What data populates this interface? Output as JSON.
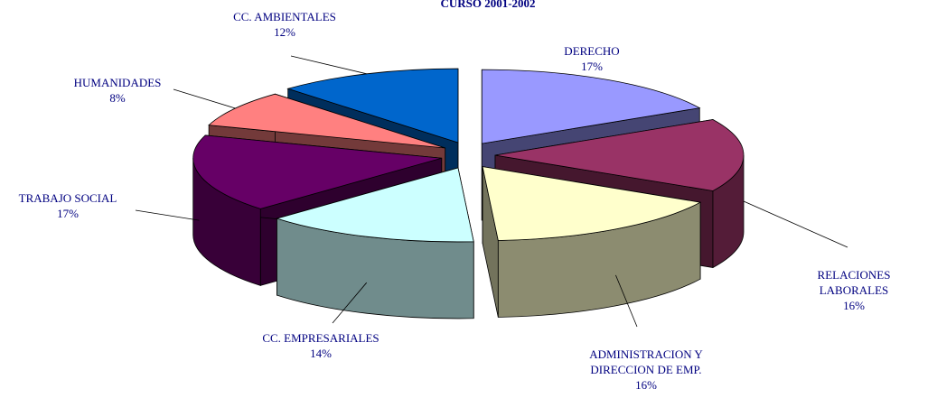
{
  "chart_data": {
    "type": "pie",
    "title": "CURSO 2001-2002",
    "categories": [
      "DERECHO",
      "RELACIONES LABORALES",
      "ADMINISTRACION Y\nDIRECCION DE EMP.",
      "CC. EMPRESARIALES",
      "TRABAJO SOCIAL",
      "HUMANIDADES",
      "CC. AMBIENTALES"
    ],
    "values": [
      17,
      16,
      16,
      14,
      17,
      8,
      12
    ],
    "value_labels": [
      "17%",
      "16%",
      "16%",
      "14%",
      "17%",
      "8%",
      "12%"
    ],
    "colors": [
      "#9999ff",
      "#993366",
      "#ffffcc",
      "#ccffff",
      "#660066",
      "#ff8080",
      "#0066cc"
    ]
  }
}
